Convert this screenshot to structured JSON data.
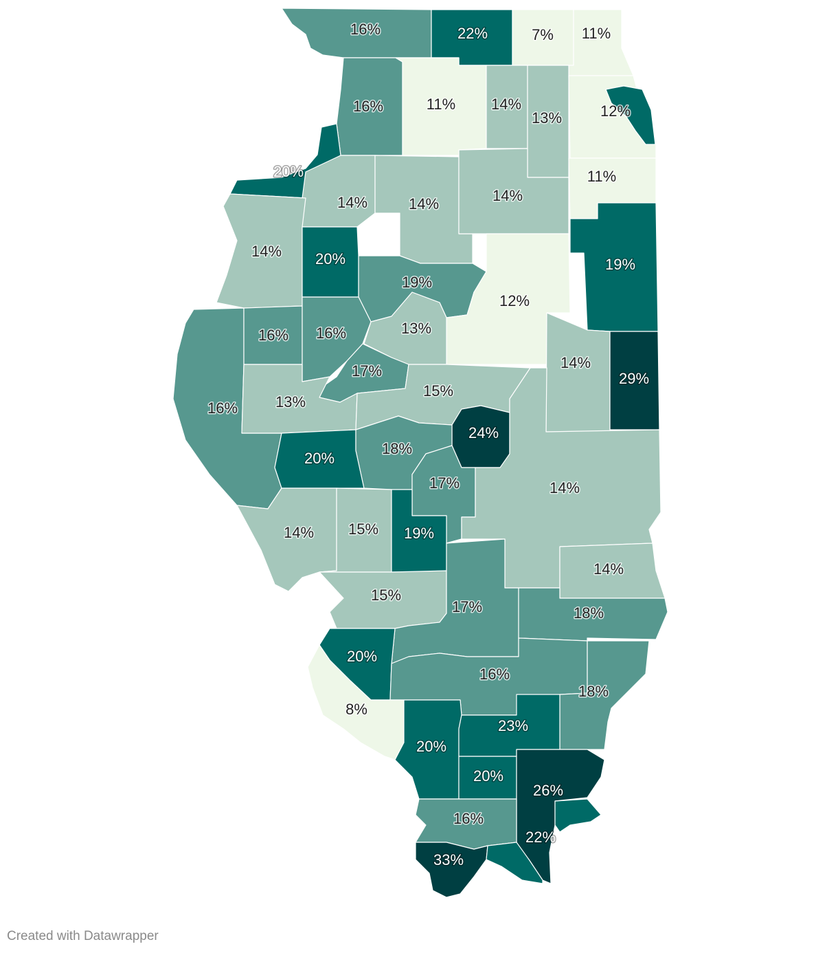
{
  "credit": "Created with Datawrapper",
  "colors": {
    "very_low": "#eef7e8",
    "low": "#a5c7bb",
    "mid": "#57988f",
    "high": "#006a66",
    "very_high": "#003f42",
    "border": "#ffffff"
  },
  "regions": [
    {
      "name": "jo-daviess",
      "label": "16%",
      "band": "mid"
    },
    {
      "name": "stephenson",
      "label": "22%",
      "band": "high"
    },
    {
      "name": "winnebago-boone",
      "label": "7%",
      "band": "very_low"
    },
    {
      "name": "mchenry-lake",
      "label": "11%",
      "band": "very_low"
    },
    {
      "name": "carroll",
      "label": "16%",
      "band": "mid"
    },
    {
      "name": "ogle",
      "label": "11%",
      "band": "very_low"
    },
    {
      "name": "dekalb",
      "label": "14%",
      "band": "low"
    },
    {
      "name": "kane",
      "label": "13%",
      "band": "low"
    },
    {
      "name": "cook",
      "label": "12%",
      "band": "very_low"
    },
    {
      "name": "chicago",
      "label": "",
      "band": "high"
    },
    {
      "name": "whiteside",
      "label": "20%",
      "band": "high"
    },
    {
      "name": "will",
      "label": "11%",
      "band": "very_low"
    },
    {
      "name": "henry",
      "label": "14%",
      "band": "low"
    },
    {
      "name": "bureau",
      "label": "14%",
      "band": "low"
    },
    {
      "name": "lasalle",
      "label": "14%",
      "band": "low"
    },
    {
      "name": "mercer",
      "label": "14%",
      "band": "low"
    },
    {
      "name": "knox",
      "label": "20%",
      "band": "high"
    },
    {
      "name": "peoria",
      "label": "19%",
      "band": "mid"
    },
    {
      "name": "livingston",
      "label": "12%",
      "band": "very_low"
    },
    {
      "name": "iroquois",
      "label": "19%",
      "band": "high"
    },
    {
      "name": "adams",
      "label": "16%",
      "band": "mid"
    },
    {
      "name": "mcdonough",
      "label": "16%",
      "band": "mid"
    },
    {
      "name": "fulton",
      "label": "16%",
      "band": "mid"
    },
    {
      "name": "woodford",
      "label": "13%",
      "band": "low"
    },
    {
      "name": "tazewell",
      "label": "17%",
      "band": "mid"
    },
    {
      "name": "ford",
      "label": "14%",
      "band": "low"
    },
    {
      "name": "vermilion",
      "label": "29%",
      "band": "very_high"
    },
    {
      "name": "schuyler",
      "label": "13%",
      "band": "low"
    },
    {
      "name": "logan",
      "label": "15%",
      "band": "low"
    },
    {
      "name": "macon",
      "label": "24%",
      "band": "very_high"
    },
    {
      "name": "morgan",
      "label": "20%",
      "band": "high"
    },
    {
      "name": "sangamon",
      "label": "18%",
      "band": "mid"
    },
    {
      "name": "christian",
      "label": "17%",
      "band": "mid"
    },
    {
      "name": "coles",
      "label": "14%",
      "band": "low"
    },
    {
      "name": "pike",
      "label": "14%",
      "band": "low"
    },
    {
      "name": "greene",
      "label": "15%",
      "band": "low"
    },
    {
      "name": "montgomery",
      "label": "19%",
      "band": "high"
    },
    {
      "name": "lawrence",
      "label": "14%",
      "band": "low"
    },
    {
      "name": "madison",
      "label": "15%",
      "band": "low"
    },
    {
      "name": "marion",
      "label": "17%",
      "band": "mid"
    },
    {
      "name": "wabash",
      "label": "18%",
      "band": "mid"
    },
    {
      "name": "st-clair",
      "label": "20%",
      "band": "high"
    },
    {
      "name": "jefferson",
      "label": "16%",
      "band": "mid"
    },
    {
      "name": "white",
      "label": "18%",
      "band": "mid"
    },
    {
      "name": "monroe",
      "label": "8%",
      "band": "very_low"
    },
    {
      "name": "jackson",
      "label": "20%",
      "band": "high"
    },
    {
      "name": "saline",
      "label": "23%",
      "band": "high"
    },
    {
      "name": "williamson",
      "label": "20%",
      "band": "high"
    },
    {
      "name": "hardin",
      "label": "26%",
      "band": "very_high"
    },
    {
      "name": "pope",
      "label": "22%",
      "band": "high"
    },
    {
      "name": "union",
      "label": "16%",
      "band": "mid"
    },
    {
      "name": "alexander",
      "label": "33%",
      "band": "very_high"
    },
    {
      "name": "pulaski",
      "label": "",
      "band": "high"
    }
  ]
}
